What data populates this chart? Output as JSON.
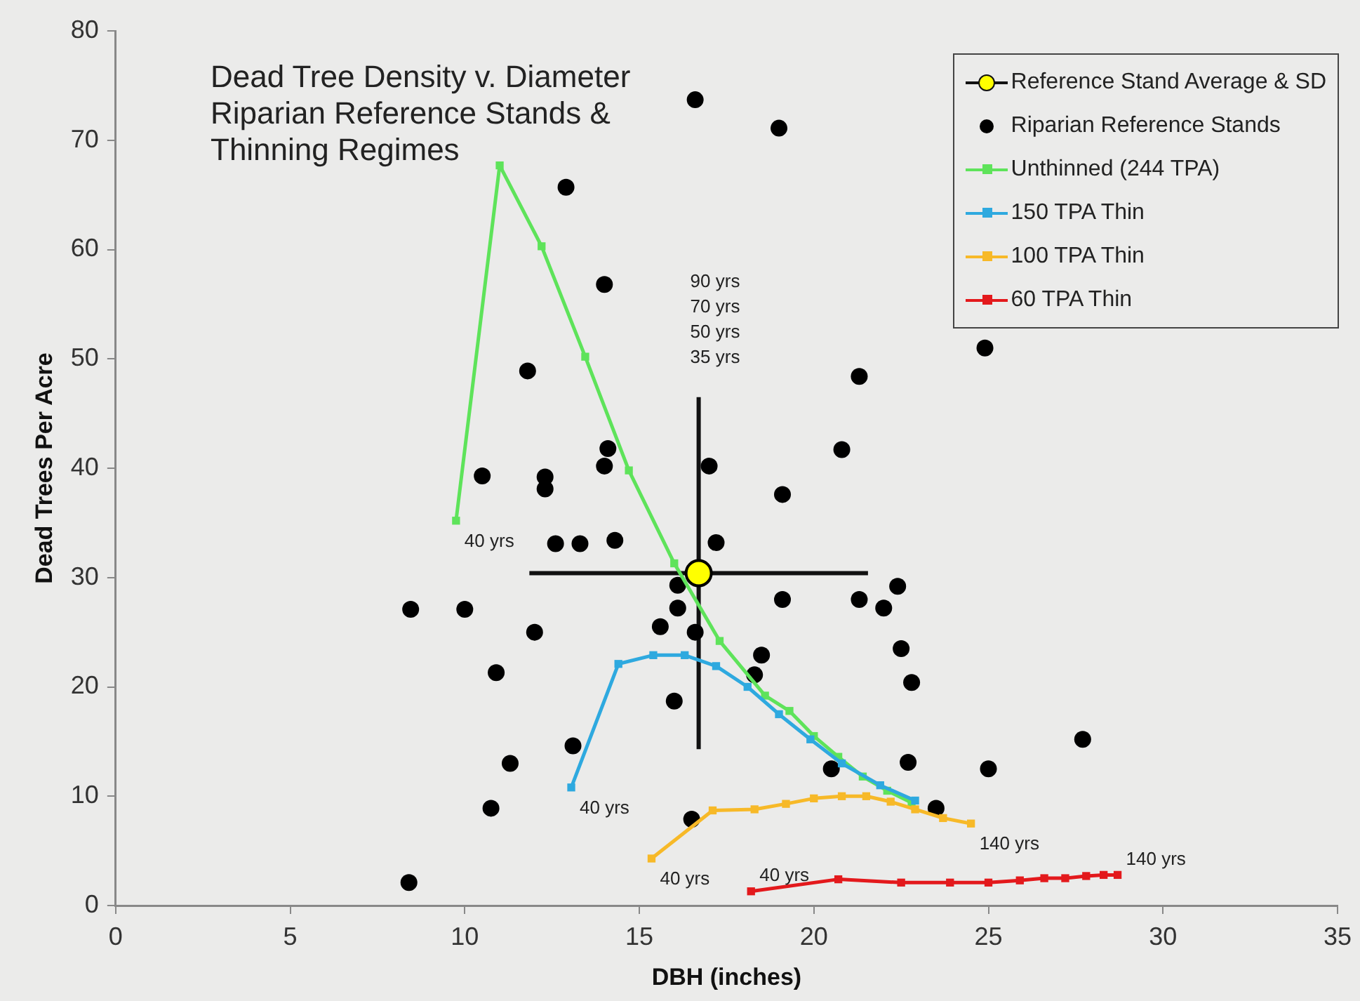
{
  "chart_data": {
    "type": "scatter",
    "title": "Dead Tree Density v. Diameter Riparian Reference Stands & Thinning Regimes",
    "xlabel": "DBH (inches)",
    "ylabel": "Dead Trees Per Acre",
    "xlim": [
      0,
      35
    ],
    "xticks": [
      0,
      5,
      10,
      15,
      20,
      25,
      30,
      35
    ],
    "ylim": [
      0,
      80
    ],
    "yticks": [
      0,
      10,
      20,
      30,
      40,
      50,
      60,
      70,
      80
    ],
    "grid": false,
    "legend": "top right",
    "series": [
      {
        "name": "Reference Stand Average & SD",
        "marker": "circle",
        "color": "#ffff00",
        "x": [
          16.7
        ],
        "values": [
          30.4
        ],
        "xerrors": [
          4.85
        ],
        "errors": [
          16.1
        ]
      },
      {
        "name": "Riparian Reference Stands",
        "marker": "circle",
        "color": "#000000",
        "x": [
          16.6,
          19.0,
          12.9,
          14.0,
          11.8,
          24.9,
          21.3,
          10.5,
          12.3,
          12.3,
          14.1,
          14.0,
          17.0,
          20.8,
          19.1,
          12.6,
          13.3,
          14.3,
          17.2,
          8.45,
          10.0,
          12.0,
          10.9,
          13.1,
          11.3,
          10.75,
          8.4,
          16.1,
          16.1,
          15.6,
          16.6,
          16.0,
          19.1,
          21.3,
          22.0,
          22.4,
          22.5,
          22.8,
          18.5,
          18.3,
          27.7,
          22.7,
          20.5,
          25.0,
          23.5,
          16.5
        ],
        "values": [
          73.7,
          71.1,
          65.7,
          56.8,
          48.9,
          51.0,
          48.4,
          39.3,
          39.2,
          38.1,
          41.8,
          40.2,
          40.2,
          41.7,
          37.6,
          33.1,
          33.1,
          33.4,
          33.2,
          27.1,
          27.1,
          25.0,
          21.3,
          14.6,
          13.0,
          8.9,
          2.1,
          29.3,
          27.2,
          25.5,
          25.0,
          18.7,
          28.0,
          28.0,
          27.2,
          29.2,
          23.5,
          20.4,
          22.9,
          21.1,
          15.2,
          13.1,
          12.5,
          12.5,
          8.9,
          7.9
        ]
      },
      {
        "name": "Unthinned (244 TPA)",
        "type": "line",
        "marker": "square",
        "color": "#5ee35a",
        "x": [
          9.75,
          11.0,
          12.2,
          13.45,
          14.7,
          16.0,
          17.3,
          18.6,
          19.3,
          20.0,
          20.7,
          21.4,
          22.1,
          22.8
        ],
        "values": [
          35.2,
          67.7,
          60.3,
          50.2,
          39.8,
          31.3,
          24.2,
          19.2,
          17.8,
          15.5,
          13.6,
          11.8,
          10.5,
          9.4
        ]
      },
      {
        "name": "150 TPA Thin",
        "type": "line",
        "marker": "square",
        "color": "#2ea9df",
        "x": [
          13.05,
          14.4,
          15.4,
          16.3,
          17.2,
          18.1,
          19.0,
          19.9,
          20.8,
          21.9,
          22.9
        ],
        "values": [
          10.8,
          22.1,
          22.9,
          22.9,
          21.9,
          20.0,
          17.5,
          15.2,
          13.0,
          11.0,
          9.6
        ]
      },
      {
        "name": "100 TPA Thin",
        "type": "line",
        "marker": "square",
        "color": "#f7b928",
        "x": [
          15.35,
          17.1,
          18.3,
          19.2,
          20.0,
          20.8,
          21.5,
          22.2,
          22.9,
          23.7,
          24.5
        ],
        "values": [
          4.3,
          8.7,
          8.8,
          9.3,
          9.8,
          10.0,
          10.0,
          9.5,
          8.8,
          8.0,
          7.5
        ]
      },
      {
        "name": "60 TPA Thin",
        "type": "line",
        "marker": "square",
        "color": "#e3191c",
        "x": [
          18.2,
          20.7,
          22.5,
          23.9,
          25.0,
          25.9,
          26.6,
          27.2,
          27.8,
          28.3,
          28.7
        ],
        "values": [
          1.3,
          2.4,
          2.1,
          2.1,
          2.1,
          2.3,
          2.5,
          2.5,
          2.7,
          2.8,
          2.8
        ]
      }
    ],
    "annotations": [
      {
        "text": "40 yrs",
        "x": 9.75,
        "y": 35.2
      },
      {
        "text": "40 yrs",
        "x": 13.05,
        "y": 10.8
      },
      {
        "text": "40 yrs",
        "x": 15.35,
        "y": 4.3
      },
      {
        "text": "40 yrs",
        "x": 18.2,
        "y": 1.3
      },
      {
        "text": "140 yrs",
        "x": 24.5,
        "y": 7.5
      },
      {
        "text": "140 yrs",
        "x": 28.7,
        "y": 2.8
      },
      "90 yrs",
      "70 yrs",
      "50 yrs",
      "35 yrs"
    ]
  }
}
